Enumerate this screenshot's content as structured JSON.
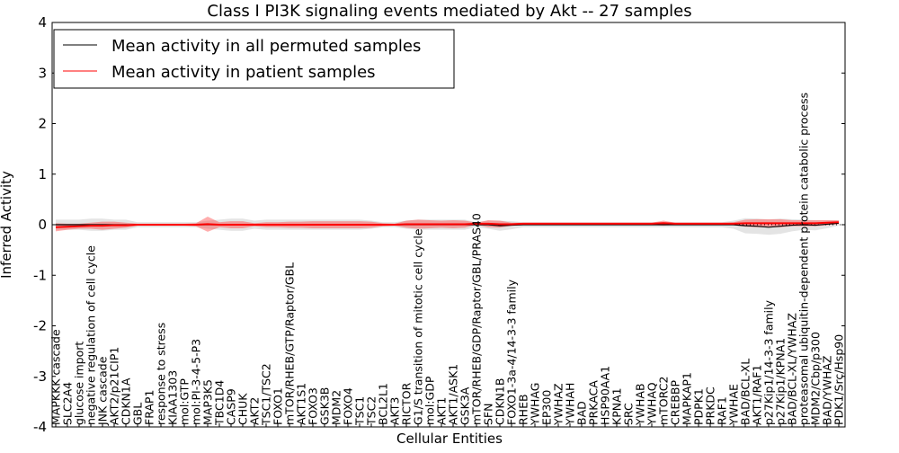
{
  "chart_data": {
    "type": "line",
    "title": "Class I PI3K signaling events mediated by Akt -- 27 samples",
    "xlabel": "Cellular Entities",
    "ylabel": "Inferred Activity",
    "ylim": [
      -4,
      4
    ],
    "yticks": [
      -4,
      -3,
      -2,
      -1,
      0,
      1,
      2,
      3,
      4
    ],
    "legend_position": "top-left",
    "categories": [
      "MAPKKK cascade",
      "SLC2A4",
      "glucose import",
      "negative regulation of cell cycle",
      "JNK cascade",
      "AKT2/p21CIP1",
      "CDKN1A",
      "GBL",
      "FRAP1",
      "response to stress",
      "KIAA1303",
      "mol:GTP",
      "mol:PI-3-4-5-P3",
      "MAP3K5",
      "TBC1D4",
      "CASP9",
      "CHUK",
      "AKT2",
      "TSC1/TSC2",
      "FOXO1",
      "mTOR/RHEB/GTP/Raptor/GBL",
      "AKT1S1",
      "FOXO3",
      "GSK3B",
      "MDM2",
      "FOXO4",
      "TSC1",
      "TSC2",
      "BCL2L1",
      "AKT3",
      "RICTOR",
      "G1/S transition of mitotic cell cycle",
      "mol:GDP",
      "AKT1",
      "AKT1/ASK1",
      "GSK3A",
      "mTOR/RHEB/GDP/Raptor/GBL/PRAS40",
      "SFN",
      "CDKN1B",
      "FOXO1-3a-4/14-3-3 family",
      "RHEB",
      "YWHAG",
      "EP300",
      "YWHAZ",
      "YWHAH",
      "BAD",
      "PRKACA",
      "HSP90AA1",
      "KPNA1",
      "SRC",
      "YWHAB",
      "YWHAQ",
      "mTORC2",
      "CREBBP",
      "MAPKAP1",
      "PDPK1",
      "PRKDC",
      "RAF1",
      "YWHAE",
      "BAD/BCL-XL",
      "AKT1/RAF1",
      "p27Kip1/14-3-3 family",
      "p27Kip1/KPNA1",
      "BAD/BCL-XL/YWHAZ",
      "proteasomal ubiquitin-dependent protein catabolic process",
      "MDM2/Cbp/p300",
      "BAD/YWHAZ",
      "PDK1/Src/Hsp90"
    ],
    "series": [
      {
        "name": "Mean activity in all permuted samples",
        "color": "#000000",
        "values": [
          0,
          0,
          0,
          0,
          0,
          0,
          0,
          0,
          0,
          0,
          0,
          0,
          0,
          0,
          0,
          0,
          0,
          0,
          0,
          0,
          0,
          0,
          0,
          0,
          0,
          0,
          0,
          0,
          0,
          0,
          0,
          0,
          0,
          0,
          0,
          0,
          0,
          0,
          -0.02,
          -0.01,
          0,
          0,
          0,
          0,
          0,
          0,
          0,
          0,
          0,
          0,
          0,
          0,
          0,
          0,
          0,
          0,
          0,
          0,
          0,
          -0.02,
          -0.03,
          -0.05,
          -0.03,
          -0.01,
          0,
          -0.01,
          0.01,
          0.03
        ],
        "band_halfwidth": [
          0.1,
          0.1,
          0.1,
          0.12,
          0.12,
          0.1,
          0.1,
          0.05,
          0.05,
          0.05,
          0.05,
          0.05,
          0.05,
          0.08,
          0.1,
          0.12,
          0.12,
          0.08,
          0.1,
          0.1,
          0.1,
          0.1,
          0.1,
          0.1,
          0.1,
          0.1,
          0.1,
          0.08,
          0.05,
          0.05,
          0.08,
          0.1,
          0.1,
          0.1,
          0.1,
          0.1,
          0.05,
          0.08,
          0.1,
          0.08,
          0.05,
          0.05,
          0.05,
          0.05,
          0.05,
          0.05,
          0.05,
          0.05,
          0.05,
          0.05,
          0.05,
          0.05,
          0.05,
          0.05,
          0.05,
          0.05,
          0.05,
          0.05,
          0.08,
          0.15,
          0.15,
          0.15,
          0.15,
          0.12,
          0.1,
          0.1,
          0.08,
          0.05
        ]
      },
      {
        "name": "Mean activity in patient samples",
        "color": "#ff0000",
        "values": [
          -0.05,
          -0.04,
          -0.03,
          -0.02,
          -0.02,
          -0.01,
          -0.01,
          0,
          0,
          0,
          0,
          0,
          0,
          0.01,
          0,
          0,
          0,
          0,
          0,
          0,
          0,
          0,
          0,
          0,
          0,
          0,
          0,
          0,
          0,
          0,
          0.01,
          0.01,
          0.01,
          0.01,
          0.01,
          0.01,
          0.02,
          0.02,
          0.01,
          0.01,
          0.02,
          0.02,
          0.02,
          0.02,
          0.02,
          0.02,
          0.02,
          0.02,
          0.02,
          0.02,
          0.02,
          0.02,
          0.03,
          0.02,
          0.02,
          0.02,
          0.02,
          0.02,
          0.02,
          0.03,
          0.03,
          0.03,
          0.03,
          0.03,
          0.03,
          0.03,
          0.04,
          0.05
        ],
        "band_halfwidth": [
          0.08,
          0.06,
          0.05,
          0.06,
          0.08,
          0.07,
          0.05,
          0.02,
          0.02,
          0.02,
          0.02,
          0.02,
          0.03,
          0.15,
          0.05,
          0.07,
          0.07,
          0.03,
          0.05,
          0.05,
          0.06,
          0.06,
          0.07,
          0.07,
          0.07,
          0.07,
          0.07,
          0.06,
          0.03,
          0.02,
          0.07,
          0.09,
          0.08,
          0.07,
          0.08,
          0.07,
          0.02,
          0.07,
          0.07,
          0.03,
          0.02,
          0.02,
          0.02,
          0.02,
          0.02,
          0.02,
          0.02,
          0.02,
          0.02,
          0.02,
          0.02,
          0.02,
          0.05,
          0.02,
          0.02,
          0.02,
          0.02,
          0.02,
          0.03,
          0.07,
          0.08,
          0.08,
          0.08,
          0.06,
          0.06,
          0.06,
          0.05,
          0.04
        ]
      }
    ]
  }
}
